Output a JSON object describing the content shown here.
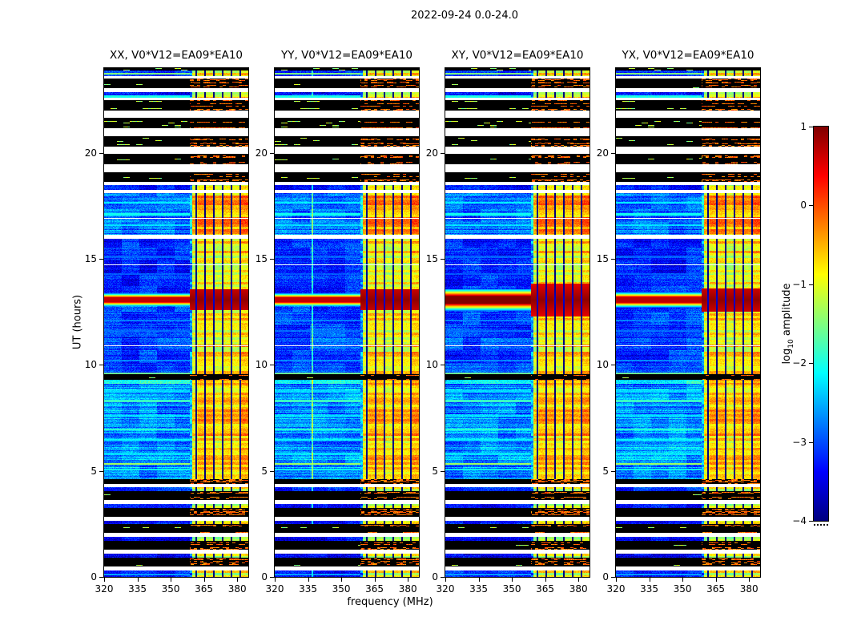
{
  "figure": {
    "title": "2022-09-24 0.0-24.0",
    "xlabel": "frequency (MHz)",
    "ylabel": "UT (hours)"
  },
  "colorbar": {
    "label_parts": [
      "log",
      "10",
      " amplitude"
    ],
    "ticks": [
      1,
      0,
      -1,
      -2,
      -3,
      -4
    ],
    "tick_labels": [
      "1",
      "0",
      "−1",
      "−2",
      "−3",
      "−4"
    ],
    "range": [
      -4,
      1
    ],
    "colormap": "jet"
  },
  "chart_data": {
    "type": "heatmap",
    "title": "2022-09-24 0.0-24.0",
    "panels": [
      {
        "title": "XX, V0*V12=EA09*EA10",
        "burst_gain": 0,
        "burst_widen": 1
      },
      {
        "title": "YY, V0*V12=EA09*EA10",
        "burst_gain": 0,
        "burst_widen": 1,
        "vline_mhz": 337
      },
      {
        "title": "XY, V0*V12=EA09*EA10",
        "burst_gain": 0.35,
        "burst_widen": 1.6
      },
      {
        "title": "YX, V0*V12=EA09*EA10",
        "burst_gain": 0.05,
        "burst_widen": 1.15
      }
    ],
    "x_axis": {
      "label": "frequency (MHz)",
      "range": [
        320,
        385
      ],
      "ticks": [
        320,
        335,
        350,
        365,
        380
      ],
      "unit": "MHz"
    },
    "y_axis": {
      "label": "UT (hours)",
      "range": [
        0,
        24
      ],
      "ticks": [
        0,
        5,
        10,
        15,
        20
      ],
      "unit": "hours"
    },
    "value_axis": {
      "label": "log10 amplitude",
      "range": [
        -4,
        1
      ],
      "colormap": "jet"
    },
    "rfi_band_mhz": [
      358.5,
      385
    ],
    "rfi_null_lines_mhz": [
      361.5,
      365.5,
      369.5,
      373.5,
      377.5,
      381.5
    ],
    "burst": {
      "time_hours": 13.07,
      "half_width_hours": 0.32,
      "peak_log10": 0.65
    },
    "white_lines_hours": [
      10.92,
      14.72,
      16.92
    ],
    "segments": [
      {
        "t0": 0.0,
        "t1": 0.32,
        "kind": "data",
        "level": -3.3,
        "rfi": -0.95,
        "stripe": 0.15
      },
      {
        "t0": 0.32,
        "t1": 0.5,
        "kind": "gap"
      },
      {
        "t0": 0.5,
        "t1": 0.92,
        "kind": "black"
      },
      {
        "t0": 0.92,
        "t1": 1.1,
        "kind": "data",
        "level": -3.4,
        "rfi": -1.15,
        "stripe": 0.15
      },
      {
        "t0": 1.1,
        "t1": 1.28,
        "kind": "gap"
      },
      {
        "t0": 1.28,
        "t1": 1.7,
        "kind": "black"
      },
      {
        "t0": 1.7,
        "t1": 1.88,
        "kind": "data",
        "level": -3.35,
        "rfi": -1.1,
        "stripe": 0.15
      },
      {
        "t0": 1.88,
        "t1": 2.06,
        "kind": "gap"
      },
      {
        "t0": 2.06,
        "t1": 2.48,
        "kind": "black"
      },
      {
        "t0": 2.48,
        "t1": 2.66,
        "kind": "data",
        "level": -3.3,
        "rfi": -1.05,
        "stripe": 0.15
      },
      {
        "t0": 2.66,
        "t1": 2.84,
        "kind": "gap"
      },
      {
        "t0": 2.84,
        "t1": 3.26,
        "kind": "black"
      },
      {
        "t0": 3.26,
        "t1": 3.44,
        "kind": "data",
        "level": -3.3,
        "rfi": -1.0,
        "stripe": 0.15
      },
      {
        "t0": 3.44,
        "t1": 3.62,
        "kind": "gap"
      },
      {
        "t0": 3.62,
        "t1": 4.04,
        "kind": "black"
      },
      {
        "t0": 4.04,
        "t1": 4.22,
        "kind": "data",
        "level": -3.2,
        "rfi": -1.0,
        "stripe": 0.15
      },
      {
        "t0": 4.22,
        "t1": 4.38,
        "kind": "gap"
      },
      {
        "t0": 4.38,
        "t1": 4.62,
        "kind": "black"
      },
      {
        "t0": 4.62,
        "t1": 9.1,
        "kind": "data",
        "level": -2.68,
        "rfi": -0.55,
        "stripe": 0.38
      },
      {
        "t0": 9.1,
        "t1": 9.28,
        "kind": "data",
        "level": -1.95,
        "rfi": -0.45,
        "stripe": 0.3
      },
      {
        "t0": 9.28,
        "t1": 9.55,
        "kind": "black"
      },
      {
        "t0": 9.55,
        "t1": 12.72,
        "kind": "data",
        "level": -3.1,
        "rfi": -0.75,
        "stripe": 0.22
      },
      {
        "t0": 12.72,
        "t1": 13.42,
        "kind": "data",
        "level": -2.9,
        "rfi": -0.5,
        "stripe": 0.2
      },
      {
        "t0": 13.42,
        "t1": 15.95,
        "kind": "data",
        "level": -3.2,
        "rfi": -0.8,
        "stripe": 0.2
      },
      {
        "t0": 15.95,
        "t1": 16.12,
        "kind": "gap"
      },
      {
        "t0": 16.12,
        "t1": 18.1,
        "kind": "data",
        "level": -2.9,
        "rfi": -0.45,
        "stripe": 0.3
      },
      {
        "t0": 18.1,
        "t1": 18.26,
        "kind": "gap"
      },
      {
        "t0": 18.26,
        "t1": 18.48,
        "kind": "data",
        "level": -3.3,
        "rfi": -0.95,
        "stripe": 0.15
      },
      {
        "t0": 18.48,
        "t1": 18.62,
        "kind": "gap"
      },
      {
        "t0": 18.62,
        "t1": 19.1,
        "kind": "black"
      },
      {
        "t0": 19.1,
        "t1": 19.45,
        "kind": "gap"
      },
      {
        "t0": 19.45,
        "t1": 19.95,
        "kind": "black"
      },
      {
        "t0": 19.95,
        "t1": 20.3,
        "kind": "gap"
      },
      {
        "t0": 20.3,
        "t1": 20.8,
        "kind": "black"
      },
      {
        "t0": 20.8,
        "t1": 21.15,
        "kind": "gap"
      },
      {
        "t0": 21.15,
        "t1": 21.65,
        "kind": "black"
      },
      {
        "t0": 21.65,
        "t1": 22.0,
        "kind": "gap"
      },
      {
        "t0": 22.0,
        "t1": 22.5,
        "kind": "black"
      },
      {
        "t0": 22.5,
        "t1": 22.6,
        "kind": "gap"
      },
      {
        "t0": 22.6,
        "t1": 22.85,
        "kind": "data",
        "level": -3.3,
        "rfi": -0.9,
        "stripe": 0.15
      },
      {
        "t0": 22.85,
        "t1": 23.05,
        "kind": "gap"
      },
      {
        "t0": 23.05,
        "t1": 23.5,
        "kind": "black"
      },
      {
        "t0": 23.5,
        "t1": 23.62,
        "kind": "gap"
      },
      {
        "t0": 23.62,
        "t1": 23.88,
        "kind": "data",
        "level": -3.2,
        "rfi": -0.85,
        "stripe": 0.15
      },
      {
        "t0": 23.88,
        "t1": 24.01,
        "kind": "black"
      }
    ],
    "h_lines": [
      {
        "t": 0.1,
        "level": -2.6
      },
      {
        "t": 5.05,
        "level": -2.1
      },
      {
        "t": 5.34,
        "level": -1.35
      },
      {
        "t": 5.8,
        "level": -2.3
      },
      {
        "t": 6.45,
        "level": -2.15
      },
      {
        "t": 6.95,
        "level": -1.9
      },
      {
        "t": 7.6,
        "level": -2.25
      },
      {
        "t": 8.3,
        "level": -1.85
      },
      {
        "t": 8.75,
        "level": -2.3
      },
      {
        "t": 9.58,
        "level": -1.6
      },
      {
        "t": 10.2,
        "level": -2.7
      },
      {
        "t": 11.6,
        "level": -2.85
      },
      {
        "t": 12.1,
        "level": -2.75
      },
      {
        "t": 14.3,
        "level": -2.95
      },
      {
        "t": 15.1,
        "level": -2.9
      },
      {
        "t": 16.6,
        "level": -2.25
      },
      {
        "t": 17.1,
        "level": -2.05
      },
      {
        "t": 17.65,
        "level": -2.2
      },
      {
        "t": 22.66,
        "level": -2.0
      },
      {
        "t": 23.74,
        "level": -1.5
      }
    ]
  }
}
